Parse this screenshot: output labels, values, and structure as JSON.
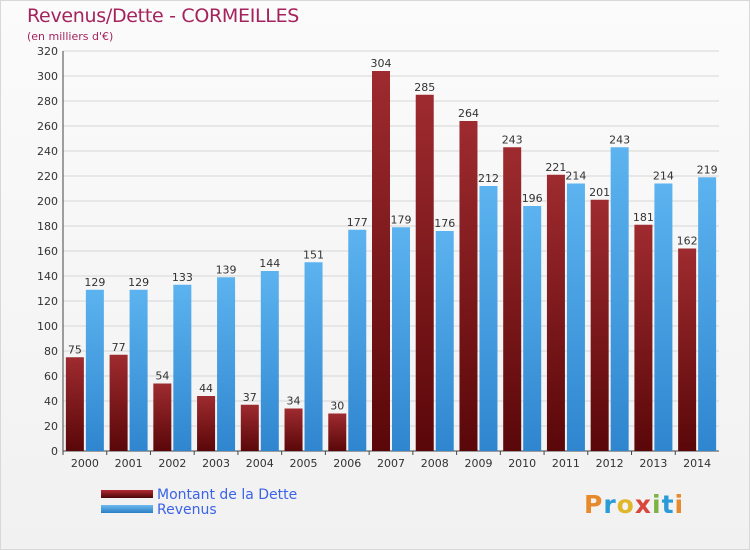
{
  "title": "Revenus/Dette - CORMEILLES",
  "subtitle": "(en milliers d'€)",
  "chart_data": {
    "type": "bar",
    "categories": [
      "2000",
      "2001",
      "2002",
      "2003",
      "2004",
      "2005",
      "2006",
      "2007",
      "2008",
      "2009",
      "2010",
      "2011",
      "2012",
      "2013",
      "2014"
    ],
    "series": [
      {
        "name": "Montant de la Dette",
        "color": "#7a1518",
        "values": [
          75,
          77,
          54,
          44,
          37,
          34,
          30,
          304,
          285,
          264,
          243,
          221,
          201,
          181,
          162
        ]
      },
      {
        "name": "Revenus",
        "color": "#3a96dd",
        "values": [
          129,
          129,
          133,
          139,
          144,
          151,
          177,
          179,
          176,
          212,
          196,
          214,
          243,
          214,
          219
        ]
      }
    ],
    "yticks": [
      0,
      20,
      40,
      60,
      80,
      100,
      120,
      140,
      160,
      180,
      200,
      220,
      240,
      260,
      280,
      300,
      320
    ],
    "ylim": [
      0,
      320
    ],
    "grid": true,
    "legend_position": "bottom-left"
  },
  "legend": {
    "debt_label": "Montant de la Dette",
    "revenue_label": "Revenus"
  },
  "logo_text": "Proxiti"
}
